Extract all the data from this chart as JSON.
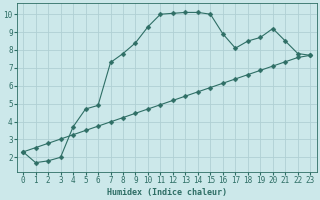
{
  "xlabel": "Humidex (Indice chaleur)",
  "bg_color": "#cce8ea",
  "grid_color": "#b0d0d4",
  "line_color": "#2e6e65",
  "xlim": [
    -0.5,
    23.5
  ],
  "ylim": [
    1.2,
    10.6
  ],
  "yticks": [
    2,
    3,
    4,
    5,
    6,
    7,
    8,
    9,
    10
  ],
  "xticks": [
    0,
    1,
    2,
    3,
    4,
    5,
    6,
    7,
    8,
    9,
    10,
    11,
    12,
    13,
    14,
    15,
    16,
    17,
    18,
    19,
    20,
    21,
    22,
    23
  ],
  "line1_x": [
    0,
    1,
    2,
    3,
    4,
    5,
    6,
    7,
    8,
    9,
    10,
    11,
    12,
    13,
    14,
    15,
    16,
    17,
    18,
    19,
    20,
    21,
    22,
    23
  ],
  "line1_y": [
    2.3,
    1.7,
    1.8,
    2.0,
    3.7,
    4.7,
    4.9,
    7.3,
    7.8,
    8.4,
    9.3,
    10.0,
    10.05,
    10.1,
    10.1,
    10.0,
    8.9,
    8.1,
    8.5,
    8.7,
    9.2,
    8.5,
    7.8,
    7.7
  ],
  "line2_x": [
    0,
    1,
    2,
    3,
    4,
    5,
    6,
    7,
    8,
    9,
    10,
    11,
    12,
    13,
    14,
    15,
    16,
    17,
    18,
    19,
    20,
    21,
    22,
    23
  ],
  "line2_y": [
    2.3,
    2.54,
    2.78,
    3.02,
    3.26,
    3.5,
    3.74,
    3.98,
    4.22,
    4.46,
    4.7,
    4.94,
    5.18,
    5.42,
    5.66,
    5.9,
    6.14,
    6.38,
    6.62,
    6.86,
    7.1,
    7.34,
    7.58,
    7.7
  ],
  "marker": "D",
  "marker_size": 2.5,
  "line_width": 0.8,
  "xlabel_fontsize": 6.0,
  "tick_fontsize": 5.5
}
